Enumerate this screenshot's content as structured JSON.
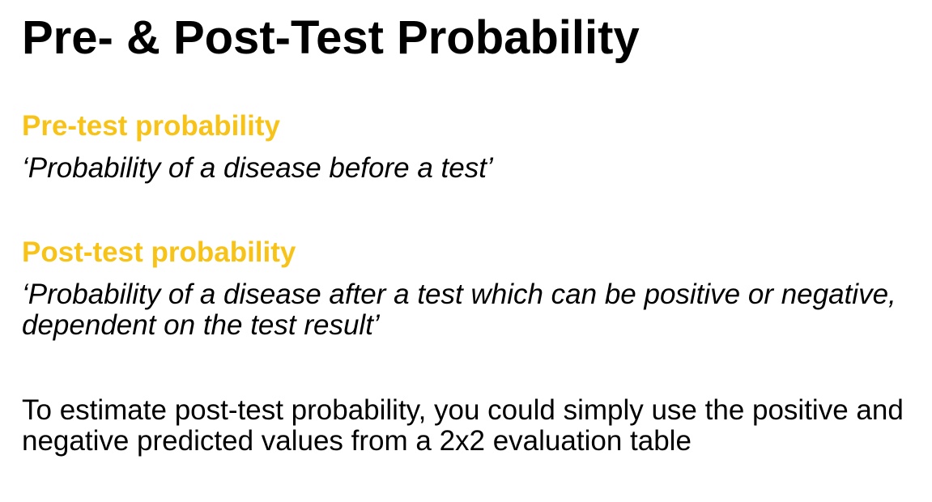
{
  "slide": {
    "title": "Pre- & Post-Test Probability",
    "accent_color": "#f7c319",
    "sections": [
      {
        "term": "Pre-test probability",
        "definition": "‘Probability of a disease before a test’"
      },
      {
        "term": "Post-test probability",
        "definition": "‘Probability of a disease after a test which can be positive or negative, dependent on the test result’"
      }
    ],
    "note": "To estimate post-test probability, you could simply use the positive and negative predicted values from a 2x2 evaluation table"
  }
}
